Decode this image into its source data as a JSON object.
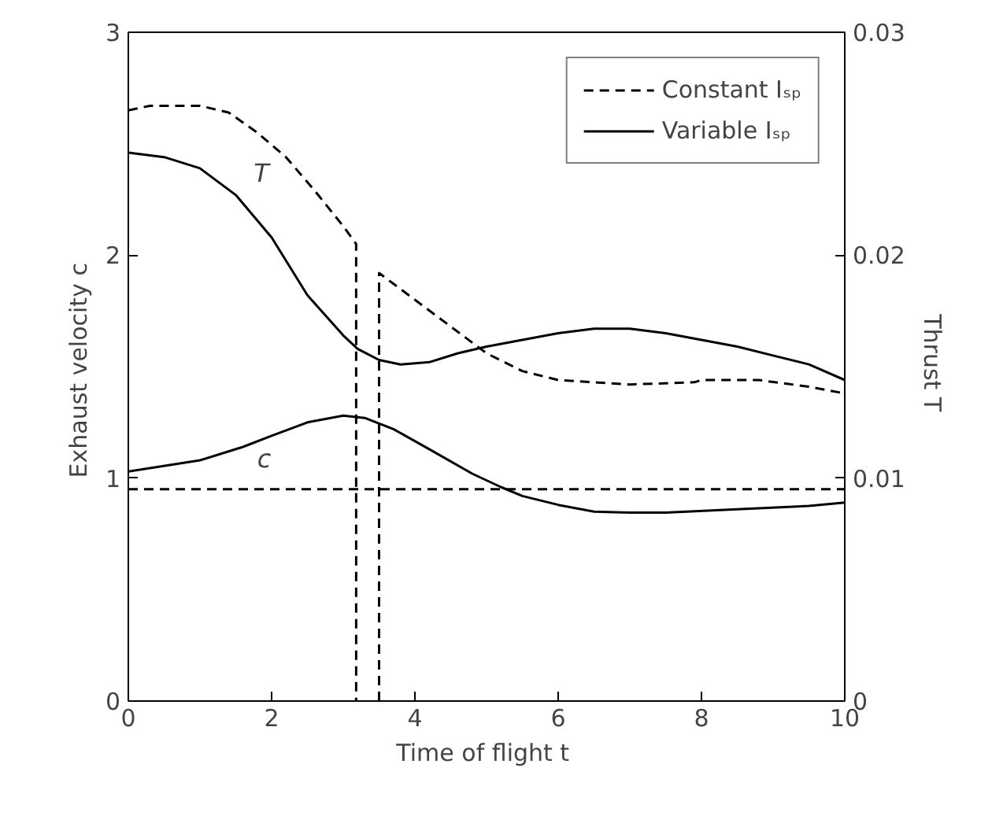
{
  "chart_data": {
    "type": "line",
    "xlabel": "Time of flight  t",
    "ylabel": "Exhaust velocity  c",
    "y2label": "Thrust  T",
    "xlim": [
      0,
      10
    ],
    "xticks": [
      0,
      2,
      4,
      6,
      8,
      10
    ],
    "ylim": [
      0,
      3
    ],
    "yticks": [
      0,
      1,
      2,
      3
    ],
    "y2lim": [
      0,
      0.03
    ],
    "y2ticks": [
      0,
      0.01,
      0.02,
      0.03
    ],
    "grid": false,
    "legend": "top right",
    "annotations": [
      "T",
      "c"
    ],
    "series": [
      {
        "name": "Constant Iₛₚ",
        "color": "#000000",
        "line_style": "dashed",
        "axis": "y2",
        "x": [
          0,
          0.3,
          1,
          1.4,
          1.8,
          2.2,
          2.6,
          3.0,
          3.18,
          3.18,
          3.3,
          3.5,
          3.5,
          4,
          4.5,
          5,
          5.5,
          6,
          6.5,
          7,
          7.9,
          8,
          8.8,
          9.5,
          10
        ],
        "values": [
          0.0265,
          0.0267,
          0.0267,
          0.0264,
          0.0255,
          0.0244,
          0.0229,
          0.0213,
          0.0205,
          0,
          null,
          0,
          0.0192,
          0.018,
          0.0168,
          0.0156,
          0.0148,
          0.0144,
          0.0143,
          0.0142,
          0.0143,
          0.0144,
          0.0144,
          0.0141,
          0.0138
        ]
      },
      {
        "color": "#000000",
        "line_style": "dashed",
        "x": [
          0,
          10
        ],
        "values": [
          0.95,
          0.95
        ]
      },
      {
        "name": "Variable Iₛₚ",
        "color": "#000000",
        "line_style": "solid",
        "axis": "y2",
        "x": [
          0,
          0.5,
          1,
          1.5,
          2,
          2.5,
          3,
          3.2,
          3.5,
          3.8,
          4.2,
          4.6,
          5,
          5.5,
          6,
          6.5,
          7,
          7.5,
          8,
          8.5,
          9,
          9.5,
          10
        ],
        "values": [
          0.0246,
          0.0244,
          0.0239,
          0.0227,
          0.0208,
          0.0182,
          0.0164,
          0.0158,
          0.0153,
          0.0151,
          0.0152,
          0.0156,
          0.0159,
          0.0162,
          0.0165,
          0.0167,
          0.0167,
          0.0165,
          0.0162,
          0.0159,
          0.0155,
          0.0151,
          0.0144
        ]
      },
      {
        "color": "#000000",
        "line_style": "solid",
        "x": [
          0,
          1,
          1.6,
          2,
          2.5,
          3,
          3.3,
          3.7,
          4.2,
          4.8,
          5.2,
          5.5,
          6,
          6.5,
          7,
          7.5,
          8.5,
          9.5,
          10
        ],
        "values": [
          1.03,
          1.08,
          1.14,
          1.19,
          1.25,
          1.28,
          1.27,
          1.22,
          1.13,
          1.02,
          0.96,
          0.92,
          0.88,
          0.85,
          0.845,
          0.845,
          0.86,
          0.875,
          0.89
        ]
      }
    ]
  }
}
